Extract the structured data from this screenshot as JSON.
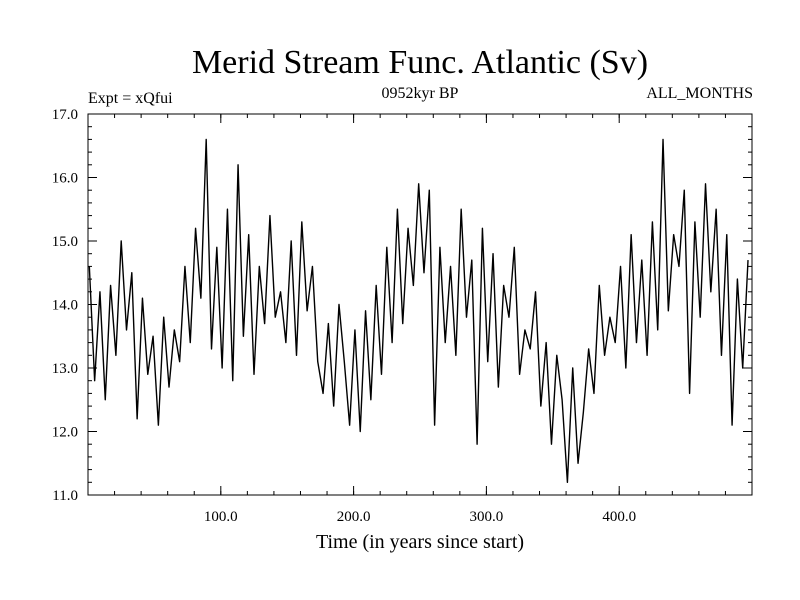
{
  "chart_data": {
    "type": "line",
    "title": "Merid Stream Func. Atlantic (Sv)",
    "subtitle_left": "Expt = xQfui",
    "subtitle_center": "0952kyr BP",
    "subtitle_right": "ALL_MONTHS",
    "xlabel": "Time (in years since start)",
    "ylabel": "",
    "xlim": [
      0,
      500
    ],
    "ylim": [
      11.0,
      17.0
    ],
    "xticks": [
      100,
      200,
      300,
      400
    ],
    "xtick_labels": [
      "100.0",
      "200.0",
      "300.0",
      "400.0"
    ],
    "yticks": [
      11,
      12,
      13,
      14,
      15,
      16,
      17
    ],
    "ytick_labels": [
      "11.0",
      "12.0",
      "13.0",
      "14.0",
      "15.0",
      "16.0",
      "17.0"
    ],
    "grid": false,
    "series": [
      {
        "name": "Merid Stream Func. Atlantic",
        "color": "#000000",
        "x": [
          1,
          5,
          9,
          13,
          17,
          21,
          25,
          29,
          33,
          37,
          41,
          45,
          49,
          53,
          57,
          61,
          65,
          69,
          73,
          77,
          81,
          85,
          89,
          93,
          97,
          101,
          105,
          109,
          113,
          117,
          121,
          125,
          129,
          133,
          137,
          141,
          145,
          149,
          153,
          157,
          161,
          165,
          169,
          173,
          177,
          181,
          185,
          189,
          193,
          197,
          201,
          205,
          209,
          213,
          217,
          221,
          225,
          229,
          233,
          237,
          241,
          245,
          249,
          253,
          257,
          261,
          265,
          269,
          273,
          277,
          281,
          285,
          289,
          293,
          297,
          301,
          305,
          309,
          313,
          317,
          321,
          325,
          329,
          333,
          337,
          341,
          345,
          349,
          353,
          357,
          361,
          365,
          369,
          373,
          377,
          381,
          385,
          389,
          393,
          397,
          401,
          405,
          409,
          413,
          417,
          421,
          425,
          429,
          433,
          437,
          441,
          445,
          449,
          453,
          457,
          461,
          465,
          469,
          473,
          477,
          481,
          485,
          489,
          493,
          497
        ],
        "values": [
          14.6,
          12.8,
          14.2,
          12.5,
          14.3,
          13.2,
          15.0,
          13.6,
          14.5,
          12.2,
          14.1,
          12.9,
          13.5,
          12.1,
          13.8,
          12.7,
          13.6,
          13.1,
          14.6,
          13.4,
          15.2,
          14.1,
          16.6,
          13.3,
          14.9,
          13.0,
          15.5,
          12.8,
          16.2,
          13.5,
          15.1,
          12.9,
          14.6,
          13.7,
          15.4,
          13.8,
          14.2,
          13.4,
          15.0,
          13.2,
          15.3,
          13.9,
          14.6,
          13.1,
          12.6,
          13.7,
          12.4,
          14.0,
          13.1,
          12.1,
          13.6,
          12.0,
          13.9,
          12.5,
          14.3,
          12.9,
          14.9,
          13.4,
          15.5,
          13.7,
          15.2,
          14.3,
          15.9,
          14.5,
          15.8,
          12.1,
          14.9,
          13.4,
          14.6,
          13.2,
          15.5,
          13.8,
          14.7,
          11.8,
          15.2,
          13.1,
          14.8,
          12.7,
          14.3,
          13.8,
          14.9,
          12.9,
          13.6,
          13.3,
          14.2,
          12.4,
          13.4,
          11.8,
          13.2,
          12.5,
          11.2,
          13.0,
          11.5,
          12.3,
          13.3,
          12.6,
          14.3,
          13.2,
          13.8,
          13.4,
          14.6,
          13.0,
          15.1,
          13.4,
          14.7,
          13.2,
          15.3,
          13.6,
          16.6,
          13.9,
          15.1,
          14.6,
          15.8,
          12.6,
          15.3,
          13.8,
          15.9,
          14.2,
          15.5,
          13.2,
          15.1,
          12.1,
          14.4,
          13.0,
          14.7
        ]
      }
    ]
  }
}
